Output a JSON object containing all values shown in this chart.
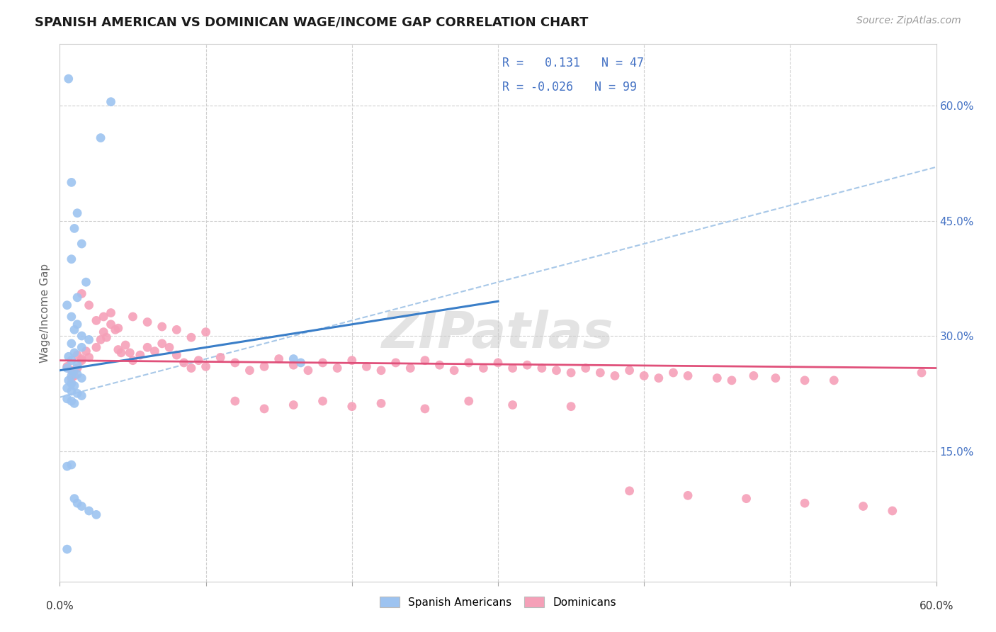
{
  "title": "SPANISH AMERICAN VS DOMINICAN WAGE/INCOME GAP CORRELATION CHART",
  "source": "Source: ZipAtlas.com",
  "ylabel": "Wage/Income Gap",
  "ytick_values": [
    0.15,
    0.3,
    0.45,
    0.6
  ],
  "xlim": [
    0.0,
    0.6
  ],
  "ylim": [
    -0.02,
    0.68
  ],
  "color_blue": "#9DC3F0",
  "color_pink": "#F5A0B8",
  "line_blue": "#3A7EC8",
  "line_pink": "#E0507A",
  "line_dashed_color": "#A8C8E8",
  "r1_val": "0.131",
  "n1_val": "47",
  "r2_val": "-0.026",
  "n2_val": "99",
  "sa_x": [
    0.006,
    0.035,
    0.028,
    0.008,
    0.012,
    0.01,
    0.015,
    0.008,
    0.018,
    0.012,
    0.005,
    0.008,
    0.012,
    0.01,
    0.015,
    0.02,
    0.008,
    0.015,
    0.01,
    0.006,
    0.008,
    0.012,
    0.005,
    0.009,
    0.012,
    0.008,
    0.015,
    0.006,
    0.008,
    0.01,
    0.005,
    0.008,
    0.012,
    0.015,
    0.005,
    0.008,
    0.01,
    0.16,
    0.165,
    0.008,
    0.005,
    0.01,
    0.012,
    0.015,
    0.02,
    0.025,
    0.005
  ],
  "sa_y": [
    0.635,
    0.605,
    0.558,
    0.5,
    0.46,
    0.44,
    0.42,
    0.4,
    0.37,
    0.35,
    0.34,
    0.325,
    0.315,
    0.308,
    0.3,
    0.295,
    0.29,
    0.285,
    0.278,
    0.273,
    0.268,
    0.262,
    0.258,
    0.253,
    0.25,
    0.248,
    0.245,
    0.242,
    0.238,
    0.235,
    0.232,
    0.228,
    0.225,
    0.222,
    0.218,
    0.215,
    0.212,
    0.27,
    0.265,
    0.132,
    0.13,
    0.088,
    0.082,
    0.078,
    0.072,
    0.067,
    0.022
  ],
  "dom_x": [
    0.005,
    0.008,
    0.01,
    0.012,
    0.015,
    0.008,
    0.012,
    0.015,
    0.018,
    0.02,
    0.025,
    0.028,
    0.03,
    0.032,
    0.035,
    0.038,
    0.04,
    0.042,
    0.045,
    0.048,
    0.05,
    0.055,
    0.06,
    0.065,
    0.07,
    0.075,
    0.08,
    0.085,
    0.09,
    0.095,
    0.1,
    0.11,
    0.12,
    0.13,
    0.14,
    0.15,
    0.16,
    0.17,
    0.18,
    0.19,
    0.2,
    0.21,
    0.22,
    0.23,
    0.24,
    0.25,
    0.26,
    0.27,
    0.28,
    0.29,
    0.3,
    0.31,
    0.32,
    0.33,
    0.34,
    0.35,
    0.36,
    0.37,
    0.38,
    0.39,
    0.4,
    0.41,
    0.42,
    0.43,
    0.45,
    0.46,
    0.475,
    0.49,
    0.51,
    0.53,
    0.015,
    0.02,
    0.025,
    0.03,
    0.035,
    0.04,
    0.05,
    0.06,
    0.07,
    0.08,
    0.09,
    0.1,
    0.12,
    0.14,
    0.16,
    0.18,
    0.2,
    0.22,
    0.25,
    0.28,
    0.31,
    0.35,
    0.39,
    0.43,
    0.47,
    0.51,
    0.55,
    0.57,
    0.59
  ],
  "dom_y": [
    0.26,
    0.255,
    0.248,
    0.258,
    0.27,
    0.245,
    0.275,
    0.268,
    0.28,
    0.272,
    0.285,
    0.295,
    0.305,
    0.298,
    0.315,
    0.308,
    0.282,
    0.278,
    0.288,
    0.278,
    0.268,
    0.275,
    0.285,
    0.28,
    0.29,
    0.285,
    0.275,
    0.265,
    0.258,
    0.268,
    0.26,
    0.272,
    0.265,
    0.255,
    0.26,
    0.27,
    0.262,
    0.255,
    0.265,
    0.258,
    0.268,
    0.26,
    0.255,
    0.265,
    0.258,
    0.268,
    0.262,
    0.255,
    0.265,
    0.258,
    0.265,
    0.258,
    0.262,
    0.258,
    0.255,
    0.252,
    0.258,
    0.252,
    0.248,
    0.255,
    0.248,
    0.245,
    0.252,
    0.248,
    0.245,
    0.242,
    0.248,
    0.245,
    0.242,
    0.242,
    0.355,
    0.34,
    0.32,
    0.325,
    0.33,
    0.31,
    0.325,
    0.318,
    0.312,
    0.308,
    0.298,
    0.305,
    0.215,
    0.205,
    0.21,
    0.215,
    0.208,
    0.212,
    0.205,
    0.215,
    0.21,
    0.208,
    0.098,
    0.092,
    0.088,
    0.082,
    0.078,
    0.072,
    0.252
  ]
}
